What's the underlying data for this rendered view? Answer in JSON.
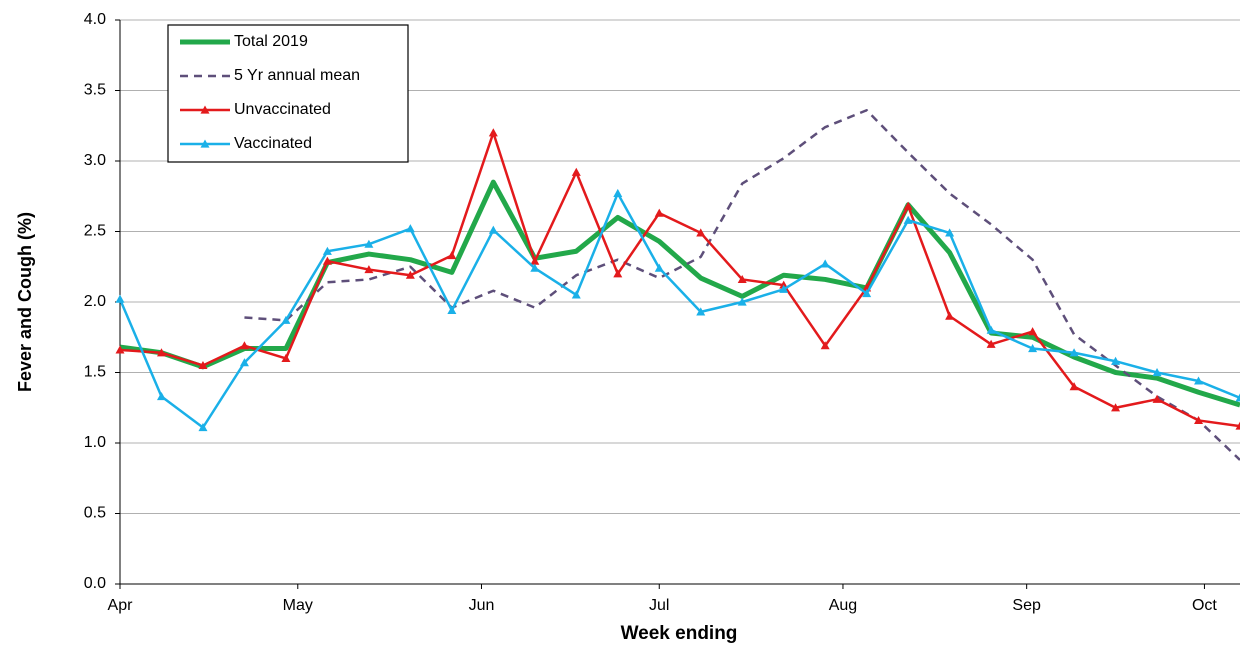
{
  "chart_data": {
    "type": "line",
    "x_label": "Week ending",
    "y_label": "Fever and Cough (%)",
    "x": [
      0,
      7,
      14,
      21,
      28,
      35,
      42,
      49,
      56,
      63,
      70,
      77,
      84,
      91,
      98,
      105,
      112,
      119,
      126,
      133,
      140,
      147,
      154,
      161,
      168,
      175,
      182,
      189
    ],
    "xlim": [
      0,
      189
    ],
    "xticks": [
      {
        "value": 0,
        "label": "Apr"
      },
      {
        "value": 30,
        "label": "May"
      },
      {
        "value": 61,
        "label": "Jun"
      },
      {
        "value": 91,
        "label": "Jul"
      },
      {
        "value": 122,
        "label": "Aug"
      },
      {
        "value": 153,
        "label": "Sep"
      },
      {
        "value": 183,
        "label": "Oct"
      }
    ],
    "ylim": [
      0,
      4
    ],
    "yticks": [
      {
        "value": 0,
        "label": "0.0"
      },
      {
        "value": 0.5,
        "label": "0.5"
      },
      {
        "value": 1,
        "label": "1.0"
      },
      {
        "value": 1.5,
        "label": "1.5"
      },
      {
        "value": 2,
        "label": "2.0"
      },
      {
        "value": 2.5,
        "label": "2.5"
      },
      {
        "value": 3,
        "label": "3.0"
      },
      {
        "value": 3.5,
        "label": "3.5"
      },
      {
        "value": 4,
        "label": "4.0"
      }
    ],
    "grid": true,
    "legend": "upper left",
    "series": [
      {
        "name": "Total 2019",
        "color": "#22a84a",
        "width": 5,
        "dashed": false,
        "marker": "none",
        "values": [
          1.68,
          1.64,
          1.54,
          1.67,
          1.67,
          2.28,
          2.34,
          2.3,
          2.21,
          2.85,
          2.31,
          2.36,
          2.6,
          2.43,
          2.17,
          2.04,
          2.19,
          2.16,
          2.1,
          2.69,
          2.35,
          1.78,
          1.75,
          1.61,
          1.5,
          1.46,
          1.36,
          1.27
        ]
      },
      {
        "name": "5 Yr annual mean",
        "color": "#5e4f7a",
        "width": 2.5,
        "dashed": true,
        "marker": "none",
        "values": [
          null,
          null,
          null,
          1.89,
          1.87,
          2.14,
          2.16,
          2.25,
          1.96,
          2.08,
          1.96,
          2.19,
          2.3,
          2.17,
          2.32,
          2.84,
          3.02,
          3.24,
          3.36,
          3.06,
          2.77,
          2.55,
          2.3,
          1.77,
          1.55,
          1.33,
          1.16,
          0.88
        ]
      },
      {
        "name": "Unvaccinated",
        "color": "#e31a1c",
        "width": 2.5,
        "dashed": false,
        "marker": "triangle",
        "values": [
          1.66,
          1.64,
          1.55,
          1.69,
          1.6,
          2.29,
          2.23,
          2.19,
          2.33,
          3.2,
          2.29,
          2.92,
          2.2,
          2.63,
          2.49,
          2.16,
          2.12,
          1.69,
          2.1,
          2.68,
          1.9,
          1.7,
          1.79,
          1.4,
          1.25,
          1.31,
          1.16,
          1.12
        ]
      },
      {
        "name": "Vaccinated",
        "color": "#1ab0e8",
        "width": 2.5,
        "dashed": false,
        "marker": "triangle",
        "values": [
          2.02,
          1.33,
          1.11,
          1.57,
          1.87,
          2.36,
          2.41,
          2.52,
          1.94,
          2.51,
          2.24,
          2.05,
          2.77,
          2.24,
          1.93,
          2.0,
          2.09,
          2.27,
          2.06,
          2.58,
          2.49,
          1.8,
          1.67,
          1.64,
          1.58,
          1.5,
          1.44,
          1.32
        ]
      }
    ]
  }
}
